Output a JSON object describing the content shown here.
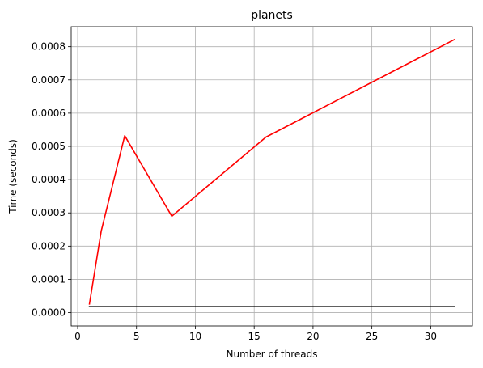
{
  "chart_data": {
    "type": "line",
    "title": "planets",
    "xlabel": "Number of threads",
    "ylabel": "Time (seconds)",
    "xlim": [
      -0.55,
      33.55
    ],
    "ylim": [
      -4e-05,
      0.00086
    ],
    "grid": true,
    "xticks": [
      0,
      5,
      10,
      15,
      20,
      25,
      30
    ],
    "xtick_labels": [
      "0",
      "5",
      "10",
      "15",
      "20",
      "25",
      "30"
    ],
    "yticks": [
      0.0,
      0.0001,
      0.0002,
      0.0003,
      0.0004,
      0.0005,
      0.0006,
      0.0007,
      0.0008
    ],
    "ytick_labels": [
      "0.0000",
      "0.0001",
      "0.0002",
      "0.0003",
      "0.0004",
      "0.0005",
      "0.0006",
      "0.0007",
      "0.0008"
    ],
    "series": [
      {
        "color": "#ff0000",
        "x": [
          1,
          2,
          4,
          8,
          16,
          32
        ],
        "y": [
          2.6e-05,
          0.000245,
          0.000532,
          0.00029,
          0.000528,
          0.000821
        ]
      },
      {
        "color": "#000000",
        "x": [
          1,
          32
        ],
        "y": [
          1.8e-05,
          1.8e-05
        ]
      }
    ]
  }
}
